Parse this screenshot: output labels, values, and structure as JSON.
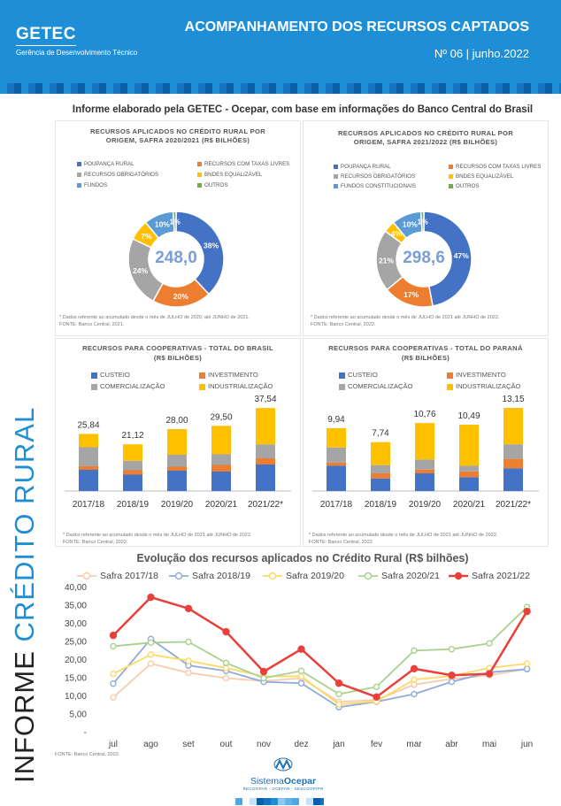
{
  "header": {
    "logo": "GETEC",
    "logo_sub": "Gerência de Desenvolvimento Técnico",
    "title": "ACOMPANHAMENTO DOS RECURSOS CAPTADOS",
    "issue": "Nº 06 | junho.2022",
    "bg_color": "#1e8fd6"
  },
  "side_label": {
    "part1": "INFORME ",
    "part2": "CRÉDITO RURAL"
  },
  "intro": "Informe elaborado pela GETEC - Ocepar, com base em informações do Banco Central do Brasil",
  "donut1": {
    "title1": "RECURSOS APLICADOS NO CRÉDITO RURAL POR",
    "title2": "ORIGEM, SAFRA 2020/2021 (R$ BILHÕES)",
    "legend": [
      "POUPANÇA RURAL",
      "RECURSOS COM TAXAS LIVRES",
      "RECURSOS OBRIGATÓRIOS",
      "BNDES EQUALIZÁVEL",
      "FUNDOS",
      "OUTROS"
    ],
    "center": "248,0",
    "note1": "* Dados referente ao acumulado desde o mês de JULHO de 2020, até JUNHO de 2021.",
    "note2": "FONTE: Banco Central, 2021."
  },
  "donut2": {
    "title1": "RECURSOS APLICADOS NO CRÉDITO RURAL POR",
    "title2": "ORIGEM, SAFRA 2021/2022 (R$ BILHÕES)",
    "legend": [
      "POUPANÇA RURAL",
      "RECURSOS COM TAXAS LIVRES",
      "RECURSOS OBRIGATÓRIOS",
      "BNDES EQUALIZÁVEL",
      "FUNDOS CONSTITUCIONAIS",
      "OUTROS"
    ],
    "center": "298,6",
    "note1": "* Dados referente ao acumulado desde o mês de JULHO de 2021 até JUNHO de 2022.",
    "note2": "FONTE: Banco Central, 2022."
  },
  "bars1": {
    "title1": "RECURSOS PARA COOPERATIVAS - TOTAL DO BRASIL",
    "title2": "(R$ BILHÕES)",
    "legend": [
      "CUSTEIO",
      "INVESTIMENTO",
      "COMERCIALIZAÇÃO",
      "INDUSTRIALIZAÇÃO"
    ],
    "note1": "* Dados referente ao acumulado desde o mês de JULHO de 2021  até JUNHO de 2022.",
    "note2": "FONTE: Banco Central, 2022."
  },
  "bars2": {
    "title1": "RECURSOS PARA COOPERATIVAS - TOTAL DO PARANÁ",
    "title2": "(R$ BILHÕES)",
    "legend": [
      "CUSTEIO",
      "INVESTIMENTO",
      "COMERCIALIZAÇÃO",
      "INDUSTRIALIZAÇÃO"
    ],
    "note1": "* Dados referente ao acumulado desde o mês de JULHO de 2021 até JUNHO de 2022.",
    "note2": "FONTE: Banco Central, 2022."
  },
  "line": {
    "title": "Evolução dos recursos aplicados no Crédito Rural (R$ bilhões)",
    "source": "FONTE: Banco Central, 2022."
  },
  "footer": {
    "logo": "Sistema",
    "logo_bold": "Ocepar",
    "logo_sub": "RECOOPAR - OCEPAR - SESCOOP/PR"
  },
  "colors": {
    "blue": "#4472c4",
    "orange": "#ed7d31",
    "gray": "#a5a5a5",
    "yellow": "#ffc000",
    "lightblue": "#5b9bd5",
    "green": "#70ad47"
  },
  "chart_data": [
    {
      "type": "pie",
      "title": "RECURSOS APLICADOS NO CRÉDITO RURAL POR ORIGEM, SAFRA 2020/2021 (R$ BILHÕES)",
      "total": "248,0",
      "categories": [
        "POUPANÇA RURAL",
        "RECURSOS COM TAXAS LIVRES",
        "RECURSOS OBRIGATÓRIOS",
        "BNDES EQUALIZÁVEL",
        "FUNDOS",
        "OUTROS"
      ],
      "values": [
        38,
        20,
        24,
        7,
        10,
        1
      ],
      "labels": [
        "38%",
        "20%",
        "24%",
        "7%",
        "10%",
        "1%"
      ]
    },
    {
      "type": "pie",
      "title": "RECURSOS APLICADOS NO CRÉDITO RURAL POR ORIGEM, SAFRA 2021/2022 (R$ BILHÕES)",
      "total": "298,6",
      "categories": [
        "POUPANÇA RURAL",
        "RECURSOS COM TAXAS LIVRES",
        "RECURSOS OBRIGATÓRIOS",
        "BNDES EQUALIZÁVEL",
        "FUNDOS CONSTITUCIONAIS",
        "OUTROS"
      ],
      "values": [
        47,
        17,
        21,
        4,
        10,
        1
      ],
      "labels": [
        "47%",
        "17%",
        "21%",
        "4%",
        "10%",
        "1%"
      ]
    },
    {
      "type": "bar",
      "title": "RECURSOS PARA COOPERATIVAS - TOTAL DO BRASIL (R$ BILHÕES)",
      "categories": [
        "2017/18",
        "2018/19",
        "2019/20",
        "2020/21",
        "2021/22*"
      ],
      "totals": [
        "25,84",
        "21,12",
        "28,00",
        "29,50",
        "37,54"
      ],
      "series": [
        {
          "name": "CUSTEIO",
          "values": [
            9.6,
            7.4,
            9.2,
            8.8,
            12.0
          ]
        },
        {
          "name": "INVESTIMENTO",
          "values": [
            1.6,
            2.0,
            1.8,
            3.0,
            2.8
          ]
        },
        {
          "name": "COMERCIALIZAÇÃO",
          "values": [
            8.6,
            4.3,
            5.4,
            4.8,
            6.3
          ]
        },
        {
          "name": "INDUSTRIALIZAÇÃO",
          "values": [
            6.04,
            7.42,
            11.6,
            12.9,
            16.44
          ]
        }
      ],
      "ylim": [
        0,
        40
      ]
    },
    {
      "type": "bar",
      "title": "RECURSOS PARA COOPERATIVAS - TOTAL DO PARANÁ (R$ BILHÕES)",
      "categories": [
        "2017/18",
        "2018/19",
        "2019/20",
        "2020/21",
        "2021/22*"
      ],
      "totals": [
        "9,94",
        "7,74",
        "10,76",
        "10,49",
        "13,15"
      ],
      "series": [
        {
          "name": "CUSTEIO",
          "values": [
            4.0,
            2.0,
            2.8,
            2.2,
            3.6
          ]
        },
        {
          "name": "INVESTIMENTO",
          "values": [
            0.5,
            0.8,
            0.6,
            0.9,
            1.5
          ]
        },
        {
          "name": "COMERCIALIZAÇÃO",
          "values": [
            2.4,
            1.3,
            1.6,
            0.9,
            2.3
          ]
        },
        {
          "name": "INDUSTRIALIZAÇÃO",
          "values": [
            3.04,
            3.64,
            5.76,
            6.49,
            5.75
          ]
        }
      ],
      "ylim": [
        0,
        14
      ]
    },
    {
      "type": "line",
      "title": "Evolução dos recursos aplicados no Crédito Rural (R$ bilhões)",
      "categories": [
        "jul",
        "ago",
        "set",
        "out",
        "nov",
        "dez",
        "jan",
        "fev",
        "mar",
        "abr",
        "mai",
        "jun"
      ],
      "yticks": [
        "-",
        "5,00",
        "10,00",
        "15,00",
        "20,00",
        "25,00",
        "30,00",
        "35,00",
        "40,00"
      ],
      "ylim": [
        0,
        40
      ],
      "series": [
        {
          "name": "Safra 2017/18",
          "color": "#f8cbad",
          "values": [
            9.7,
            19.0,
            16.5,
            15.0,
            14.2,
            15.0,
            8.5,
            9.0,
            13.2,
            14.8,
            15.8,
            17.5
          ]
        },
        {
          "name": "Safra 2018/19",
          "color": "#8faadc",
          "values": [
            13.5,
            25.8,
            18.5,
            17.0,
            14.0,
            13.6,
            7.0,
            8.5,
            10.6,
            14.0,
            16.6,
            17.5
          ]
        },
        {
          "name": "Safra 2019/20",
          "color": "#ffd966",
          "values": [
            16.2,
            21.5,
            19.8,
            17.8,
            15.5,
            15.5,
            7.8,
            8.6,
            14.6,
            15.6,
            17.8,
            19.0
          ]
        },
        {
          "name": "Safra 2020/21",
          "color": "#a9d18e",
          "values": [
            23.8,
            24.8,
            25.0,
            19.2,
            15.0,
            17.0,
            10.6,
            12.6,
            22.6,
            23.0,
            24.6,
            34.6
          ]
        },
        {
          "name": "Safra 2021/22",
          "color": "#e8413c",
          "values": [
            26.8,
            37.3,
            34.2,
            27.8,
            16.8,
            23.0,
            13.6,
            9.8,
            17.6,
            15.8,
            16.2,
            33.4
          ]
        }
      ]
    }
  ]
}
